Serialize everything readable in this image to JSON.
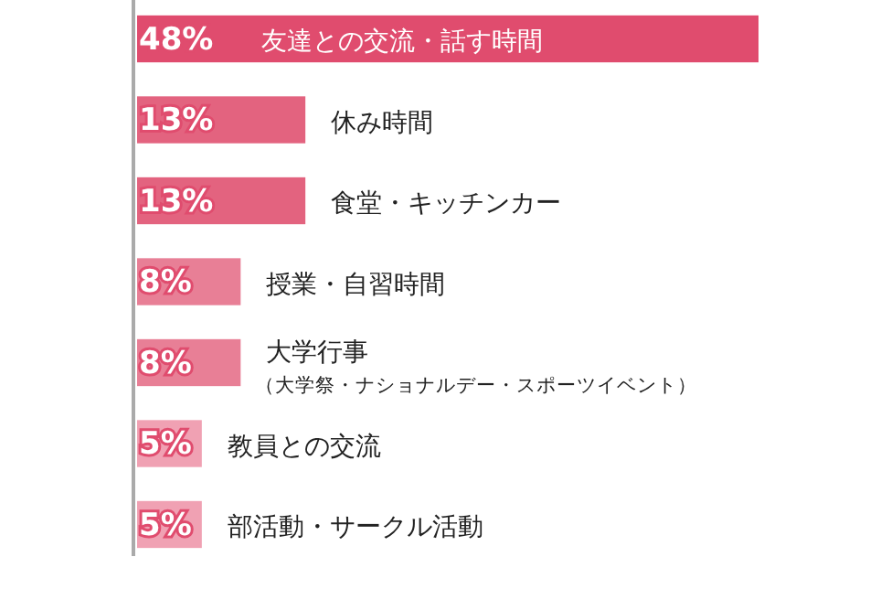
{
  "chart_data": {
    "type": "bar",
    "orientation": "horizontal",
    "data_labels": true,
    "categories": [
      "友達との交流・話す時間",
      "休み時間",
      "食堂・キッチンカー",
      "授業・自習時間",
      "大学行事（大学祭・ナショナルデー・スポーツイベント）",
      "教員との交流",
      "部活動・サークル活動"
    ],
    "values": [
      48,
      13,
      13,
      8,
      8,
      5,
      5
    ],
    "value_labels": [
      "48%",
      "13%",
      "13%",
      "8%",
      "8%",
      "5%",
      "5%"
    ],
    "colors": [
      "#e04c6e",
      "#e3637f",
      "#e3637f",
      "#e87f96",
      "#e87f96",
      "#f0a1b3",
      "#f0a1b3"
    ],
    "xlim": [
      0,
      48
    ]
  }
}
